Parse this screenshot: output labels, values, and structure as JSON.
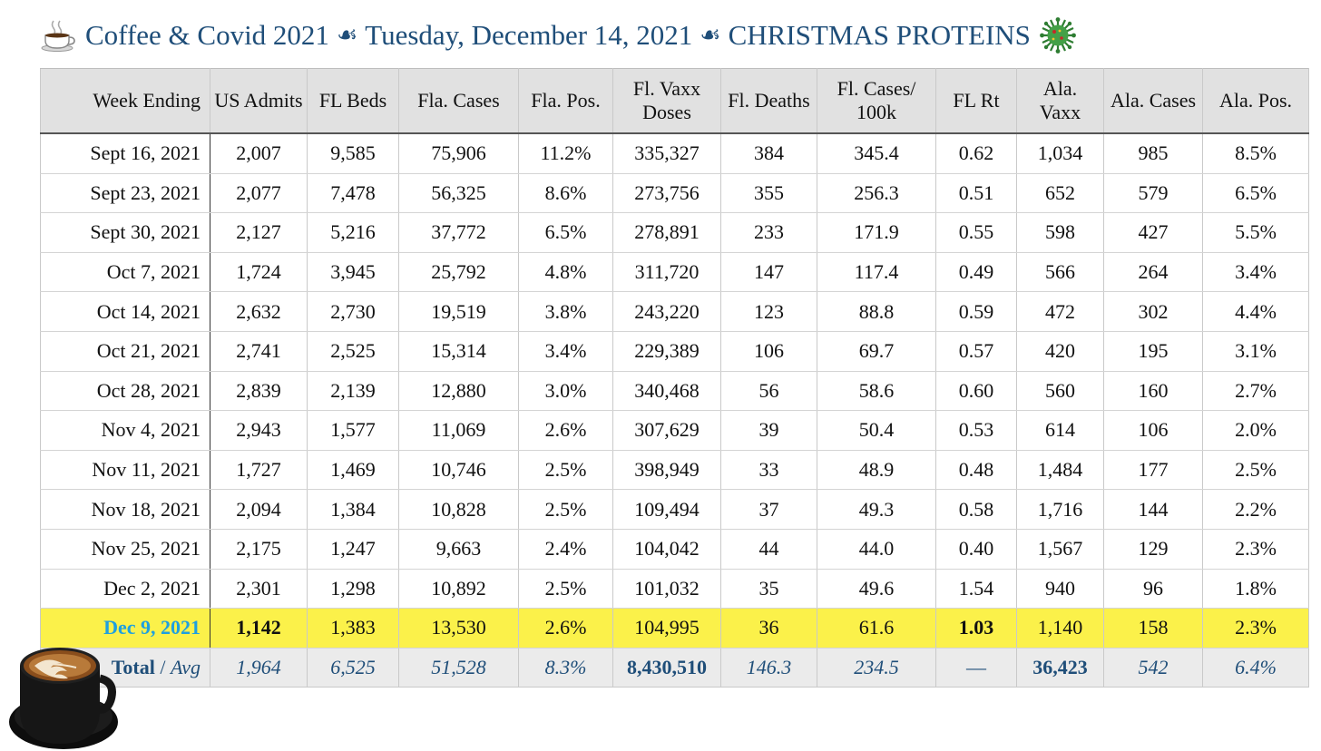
{
  "title": {
    "part1": "Coffee & Covid 2021",
    "separator": "☙",
    "part2": "Tuesday, December 14, 2021",
    "part3": "CHRISTMAS PROTEINS"
  },
  "icons": {
    "title_left": "coffee-cup-icon",
    "title_right": "virus-icon",
    "bottom_left": "latte-art-coffee-image"
  },
  "colors": {
    "title": "#1f4e79",
    "header_bg": "#e1e1e1",
    "highlight_row": "#fbf14a",
    "highlight_date": "#1ea0e0",
    "totals_text": "#1f4e79"
  },
  "table": {
    "headers": [
      "Week Ending",
      "US Admits",
      "FL Beds",
      "Fla. Cases",
      "Fla. Pos.",
      "Fl. Vaxx Doses",
      "Fl. Deaths",
      "Fl. Cases/ 100k",
      "FL Rt",
      "Ala. Vaxx",
      "Ala. Cases",
      "Ala. Pos."
    ],
    "rows": [
      [
        "Sept 16, 2021",
        "2,007",
        "9,585",
        "75,906",
        "11.2%",
        "335,327",
        "384",
        "345.4",
        "0.62",
        "1,034",
        "985",
        "8.5%"
      ],
      [
        "Sept 23, 2021",
        "2,077",
        "7,478",
        "56,325",
        "8.6%",
        "273,756",
        "355",
        "256.3",
        "0.51",
        "652",
        "579",
        "6.5%"
      ],
      [
        "Sept 30, 2021",
        "2,127",
        "5,216",
        "37,772",
        "6.5%",
        "278,891",
        "233",
        "171.9",
        "0.55",
        "598",
        "427",
        "5.5%"
      ],
      [
        "Oct 7, 2021",
        "1,724",
        "3,945",
        "25,792",
        "4.8%",
        "311,720",
        "147",
        "117.4",
        "0.49",
        "566",
        "264",
        "3.4%"
      ],
      [
        "Oct 14, 2021",
        "2,632",
        "2,730",
        "19,519",
        "3.8%",
        "243,220",
        "123",
        "88.8",
        "0.59",
        "472",
        "302",
        "4.4%"
      ],
      [
        "Oct 21, 2021",
        "2,741",
        "2,525",
        "15,314",
        "3.4%",
        "229,389",
        "106",
        "69.7",
        "0.57",
        "420",
        "195",
        "3.1%"
      ],
      [
        "Oct 28, 2021",
        "2,839",
        "2,139",
        "12,880",
        "3.0%",
        "340,468",
        "56",
        "58.6",
        "0.60",
        "560",
        "160",
        "2.7%"
      ],
      [
        "Nov 4, 2021",
        "2,943",
        "1,577",
        "11,069",
        "2.6%",
        "307,629",
        "39",
        "50.4",
        "0.53",
        "614",
        "106",
        "2.0%"
      ],
      [
        "Nov 11, 2021",
        "1,727",
        "1,469",
        "10,746",
        "2.5%",
        "398,949",
        "33",
        "48.9",
        "0.48",
        "1,484",
        "177",
        "2.5%"
      ],
      [
        "Nov 18, 2021",
        "2,094",
        "1,384",
        "10,828",
        "2.5%",
        "109,494",
        "37",
        "49.3",
        "0.58",
        "1,716",
        "144",
        "2.2%"
      ],
      [
        "Nov 25, 2021",
        "2,175",
        "1,247",
        "9,663",
        "2.4%",
        "104,042",
        "44",
        "44.0",
        "0.40",
        "1,567",
        "129",
        "2.3%"
      ],
      [
        "Dec 2, 2021",
        "2,301",
        "1,298",
        "10,892",
        "2.5%",
        "101,032",
        "35",
        "49.6",
        "1.54",
        "940",
        "96",
        "1.8%"
      ]
    ],
    "highlight_row": [
      "Dec 9, 2021",
      "1,142",
      "1,383",
      "13,530",
      "2.6%",
      "104,995",
      "36",
      "61.6",
      "1.03",
      "1,140",
      "158",
      "2.3%"
    ],
    "totals": {
      "label_total": "Total",
      "label_sep": " / ",
      "label_avg": "Avg",
      "values": [
        "1,964",
        "6,525",
        "51,528",
        "8.3%",
        "8,430,510",
        "146.3",
        "234.5",
        "—",
        "36,423",
        "542",
        "6.4%"
      ]
    }
  }
}
